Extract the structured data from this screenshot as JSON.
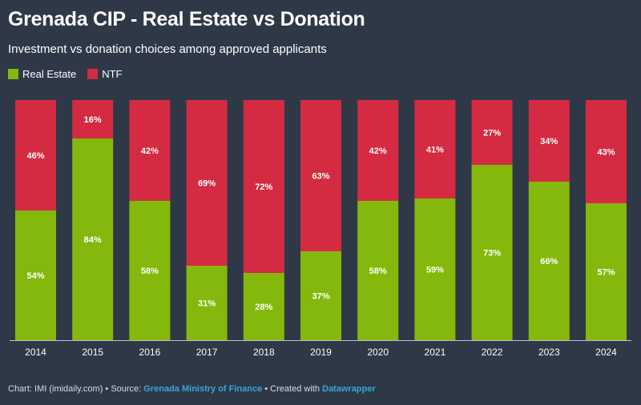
{
  "header": {
    "title": "Grenada CIP - Real Estate vs Donation",
    "subtitle": "Investment vs donation choices among approved applicants"
  },
  "legend": [
    {
      "label": "Real Estate",
      "color": "#85b80c"
    },
    {
      "label": "NTF",
      "color": "#d42b43"
    }
  ],
  "footer": {
    "prefix": "Chart: IMI (imidaily.com) • Source: ",
    "source": "Grenada Ministry of Finance",
    "middle": " • Created with ",
    "tool": "Datawrapper"
  },
  "chart_data": {
    "type": "bar",
    "stacked": true,
    "percent_stacked": true,
    "categories": [
      "2014",
      "2015",
      "2016",
      "2017",
      "2018",
      "2019",
      "2020",
      "2021",
      "2022",
      "2023",
      "2024"
    ],
    "series": [
      {
        "name": "Real Estate",
        "color": "#85b80c",
        "values": [
          54,
          84,
          58,
          31,
          28,
          37,
          58,
          59,
          73,
          66,
          57
        ]
      },
      {
        "name": "NTF",
        "color": "#d42b43",
        "values": [
          46,
          16,
          42,
          69,
          72,
          63,
          42,
          41,
          27,
          34,
          43
        ]
      }
    ],
    "data_labels": {
      "Real Estate": [
        "54%",
        "84%",
        "58%",
        "31%",
        "28%",
        "37%",
        "58%",
        "59%",
        "73%",
        "66%",
        "57%"
      ],
      "NTF": [
        "46%",
        "16%",
        "42%",
        "69%",
        "72%",
        "63%",
        "42%",
        "41%",
        "27%",
        "34%",
        "43%"
      ]
    },
    "ylim": [
      0,
      100
    ],
    "grid": false,
    "legend_position": "top-left"
  }
}
